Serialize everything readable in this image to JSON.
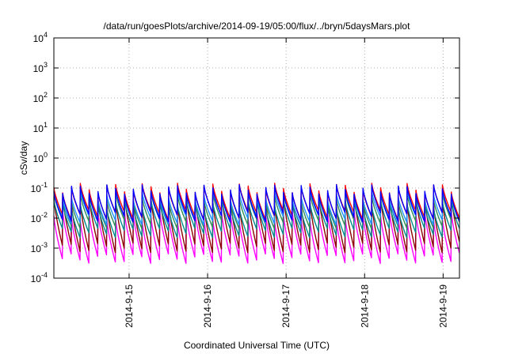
{
  "chart_data": {
    "type": "line",
    "title": "/data/run/goesPlots/archive/2014-09-19/05:00/flux/../bryn/5daysMars.plot",
    "xlabel": "Coordinated Universal Time (UTC)",
    "ylabel": "cSv/day",
    "yscale": "log",
    "ylim": [
      0.0001,
      10000
    ],
    "xlim": [
      "2014-09-14T01:00",
      "2014-09-19T05:00"
    ],
    "grid": true,
    "y_ticks": [
      {
        "base": "10",
        "exp": "-4",
        "value": 0.0001
      },
      {
        "base": "10",
        "exp": "-3",
        "value": 0.001
      },
      {
        "base": "10",
        "exp": "-2",
        "value": 0.01
      },
      {
        "base": "10",
        "exp": "-1",
        "value": 0.1
      },
      {
        "base": "10",
        "exp": "0",
        "value": 1
      },
      {
        "base": "10",
        "exp": "1",
        "value": 10
      },
      {
        "base": "10",
        "exp": "2",
        "value": 100
      },
      {
        "base": "10",
        "exp": "3",
        "value": 1000
      },
      {
        "base": "10",
        "exp": "4",
        "value": 10000
      }
    ],
    "x_ticks": [
      {
        "label": "2014-9-15",
        "value": "2014-09-15T00:00"
      },
      {
        "label": "2014-9-16",
        "value": "2014-09-16T00:00"
      },
      {
        "label": "2014-9-17",
        "value": "2014-09-17T00:00"
      },
      {
        "label": "2014-9-18",
        "value": "2014-09-18T00:00"
      },
      {
        "label": "2014-9-19",
        "value": "2014-09-19T00:00"
      }
    ],
    "pulse_period_hours": 2.7,
    "series": [
      {
        "color": "#ff00ff",
        "peak": 0.012,
        "trough": 0.0004
      },
      {
        "color": "#8b0000",
        "peak": 0.04,
        "trough": 0.0009
      },
      {
        "color": "#008b8b",
        "peak": 0.03,
        "trough": 0.003
      },
      {
        "color": "#2e8b57",
        "peak": 0.05,
        "trough": 0.006
      },
      {
        "color": "#1e90ff",
        "peak": 0.06,
        "trough": 0.008
      },
      {
        "color": "#ff0000",
        "peak": 0.1,
        "trough": 0.012
      },
      {
        "color": "#0000ff",
        "peak": 0.09,
        "trough": 0.01
      }
    ]
  }
}
